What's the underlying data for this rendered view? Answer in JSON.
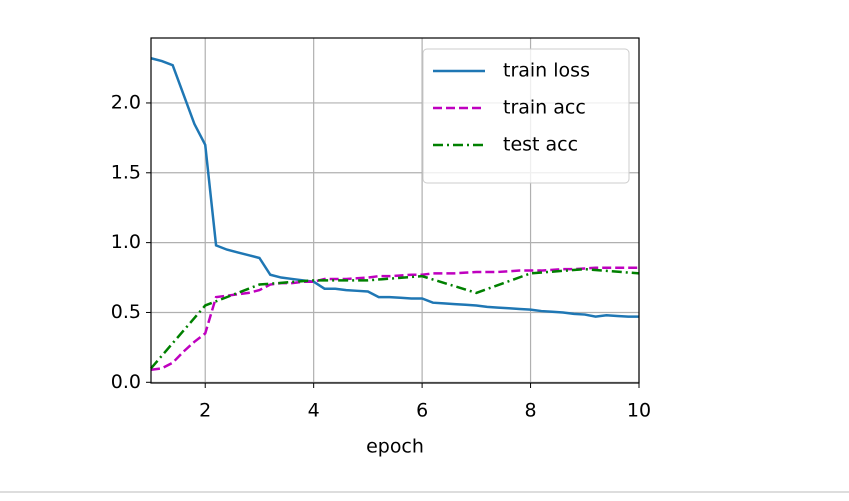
{
  "chart_data": {
    "type": "line",
    "x_label": "epoch",
    "x": [
      1.0,
      1.2,
      1.4,
      1.6,
      1.8,
      2.0,
      2.2,
      2.4,
      2.6,
      2.8,
      3.0,
      3.2,
      3.4,
      3.6,
      3.8,
      4.0,
      4.2,
      4.4,
      4.6,
      4.8,
      5.0,
      5.2,
      5.4,
      5.6,
      5.8,
      6.0,
      6.2,
      6.4,
      6.6,
      6.8,
      7.0,
      7.2,
      7.4,
      7.6,
      7.8,
      8.0,
      8.2,
      8.4,
      8.6,
      8.8,
      9.0,
      9.2,
      9.4,
      9.6,
      9.8,
      10.0
    ],
    "series": [
      {
        "name": "train loss",
        "color": "#1f77b4",
        "linestyle": "solid",
        "values": [
          2.32,
          2.3,
          2.27,
          2.06,
          1.85,
          1.7,
          0.98,
          0.95,
          0.93,
          0.91,
          0.89,
          0.77,
          0.75,
          0.74,
          0.73,
          0.72,
          0.67,
          0.67,
          0.66,
          0.655,
          0.65,
          0.61,
          0.61,
          0.605,
          0.6,
          0.6,
          0.57,
          0.565,
          0.56,
          0.555,
          0.55,
          0.54,
          0.535,
          0.53,
          0.525,
          0.52,
          0.51,
          0.505,
          0.5,
          0.49,
          0.485,
          0.47,
          0.48,
          0.475,
          0.47,
          0.47
        ]
      },
      {
        "name": "train acc",
        "color": "#bf00bf",
        "linestyle": "dashed",
        "values": [
          0.09,
          0.1,
          0.14,
          0.22,
          0.29,
          0.35,
          0.61,
          0.62,
          0.63,
          0.64,
          0.66,
          0.7,
          0.71,
          0.71,
          0.72,
          0.72,
          0.74,
          0.74,
          0.74,
          0.745,
          0.75,
          0.76,
          0.76,
          0.765,
          0.77,
          0.77,
          0.78,
          0.78,
          0.78,
          0.785,
          0.79,
          0.79,
          0.79,
          0.795,
          0.8,
          0.8,
          0.8,
          0.805,
          0.81,
          0.81,
          0.815,
          0.82,
          0.82,
          0.82,
          0.82,
          0.82
        ]
      },
      {
        "name": "test acc",
        "color": "#008000",
        "linestyle": "dashdot",
        "x": [
          1,
          2,
          3,
          4,
          5,
          6,
          7,
          8,
          9,
          10
        ],
        "values": [
          0.1,
          0.55,
          0.7,
          0.73,
          0.73,
          0.76,
          0.64,
          0.78,
          0.81,
          0.78
        ]
      }
    ],
    "xlim": [
      1,
      10
    ],
    "xticks": [
      2,
      4,
      6,
      8,
      10
    ],
    "ylim": [
      -0.005,
      2.465
    ],
    "yticks": [
      {
        "value": 0,
        "label": "0.0"
      },
      {
        "value": 0.5,
        "label": "0.5"
      },
      {
        "value": 1,
        "label": "1.0"
      },
      {
        "value": 1.5,
        "label": "1.5"
      },
      {
        "value": 2,
        "label": "2.0"
      }
    ],
    "grid": true,
    "legend": "upper right"
  }
}
